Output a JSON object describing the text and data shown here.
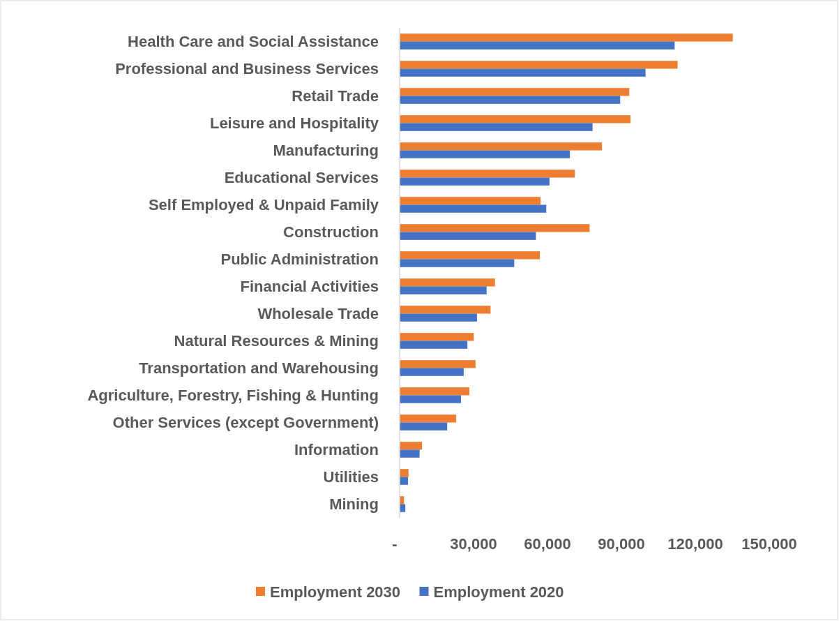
{
  "chart_data": {
    "type": "bar",
    "orientation": "horizontal",
    "categories": [
      "Health Care and Social Assistance",
      "Professional and Business Services",
      "Retail Trade",
      "Leisure and Hospitality",
      "Manufacturing",
      "Educational Services",
      "Self Employed & Unpaid Family",
      "Construction",
      "Public Administration",
      "Financial Activities",
      "Wholesale Trade",
      "Natural Resources & Mining",
      "Transportation and Warehousing",
      "Agriculture, Forestry, Fishing & Hunting",
      "Other Services (except Government)",
      "Information",
      "Utilities",
      "Mining"
    ],
    "series": [
      {
        "name": "Employment 2030",
        "color": "#ed7d31",
        "values": [
          135200,
          112800,
          93200,
          93700,
          82100,
          71100,
          57200,
          77100,
          56900,
          38700,
          36900,
          30100,
          30800,
          28300,
          22900,
          9100,
          3600,
          1800
        ]
      },
      {
        "name": "Employment 2020",
        "color": "#4472c4",
        "values": [
          111600,
          99800,
          89500,
          78300,
          69100,
          60800,
          59500,
          55300,
          46500,
          35300,
          31400,
          27500,
          26000,
          24900,
          19300,
          8100,
          3400,
          2300
        ]
      }
    ],
    "xlim": [
      0,
      150000
    ],
    "xticks": [
      {
        "value": 0,
        "label": "-"
      },
      {
        "value": 30000,
        "label": "30,000"
      },
      {
        "value": 60000,
        "label": "60,000"
      },
      {
        "value": 90000,
        "label": "90,000"
      },
      {
        "value": 120000,
        "label": "120,000"
      },
      {
        "value": 150000,
        "label": "150,000"
      }
    ],
    "grid": false,
    "legend": "bottom"
  }
}
